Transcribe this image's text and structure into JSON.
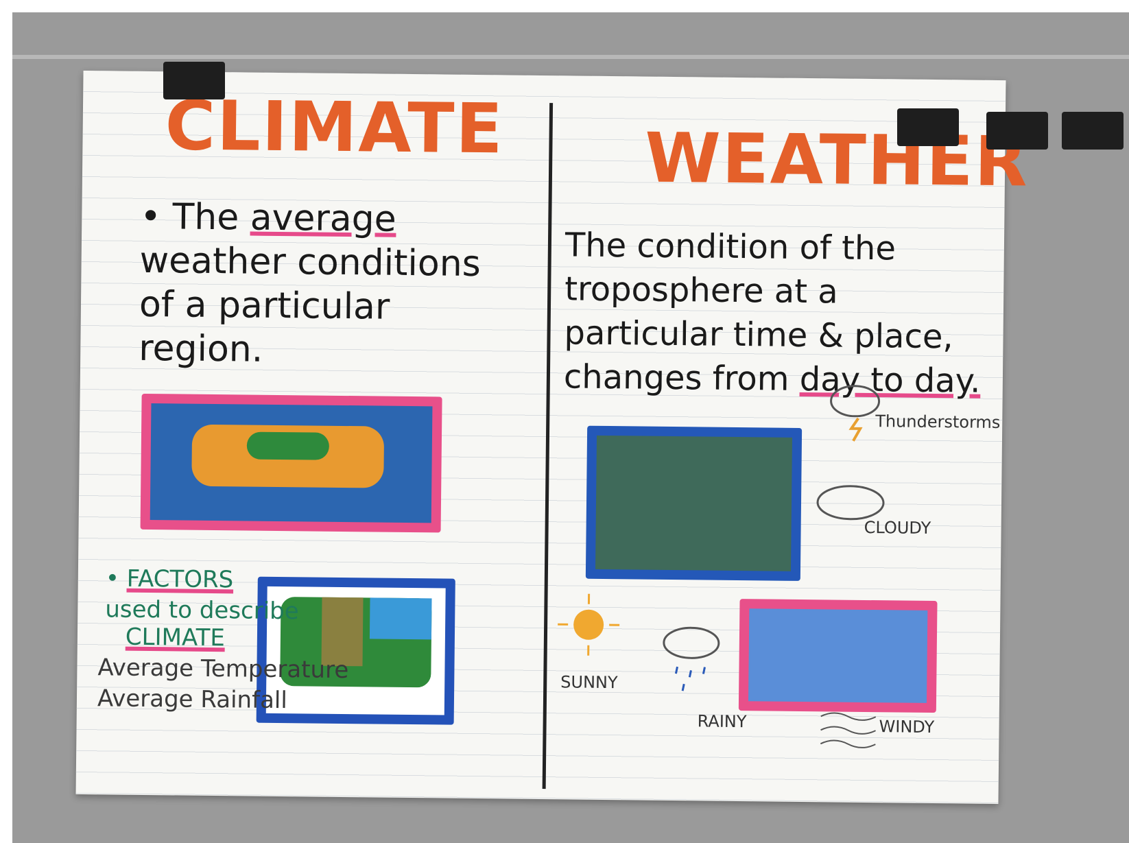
{
  "left": {
    "title": "CLIMATE",
    "definition": {
      "before": "The",
      "emphasis": "average",
      "after": "weather conditions of a particular region."
    },
    "factors": {
      "heading": "FACTORS",
      "subheading": "used to describe",
      "subject": "CLIMATE",
      "items": [
        "Average Temperature",
        "Average Rainfall"
      ]
    }
  },
  "right": {
    "title": "WEATHER",
    "definition": {
      "before": "The condition of the troposphere at a particular time & place, changes from",
      "emphasis": "day to day."
    },
    "icons": [
      "Thunderstorms",
      "CLOUDY",
      "SUNNY",
      "RAINY",
      "WINDY"
    ]
  }
}
